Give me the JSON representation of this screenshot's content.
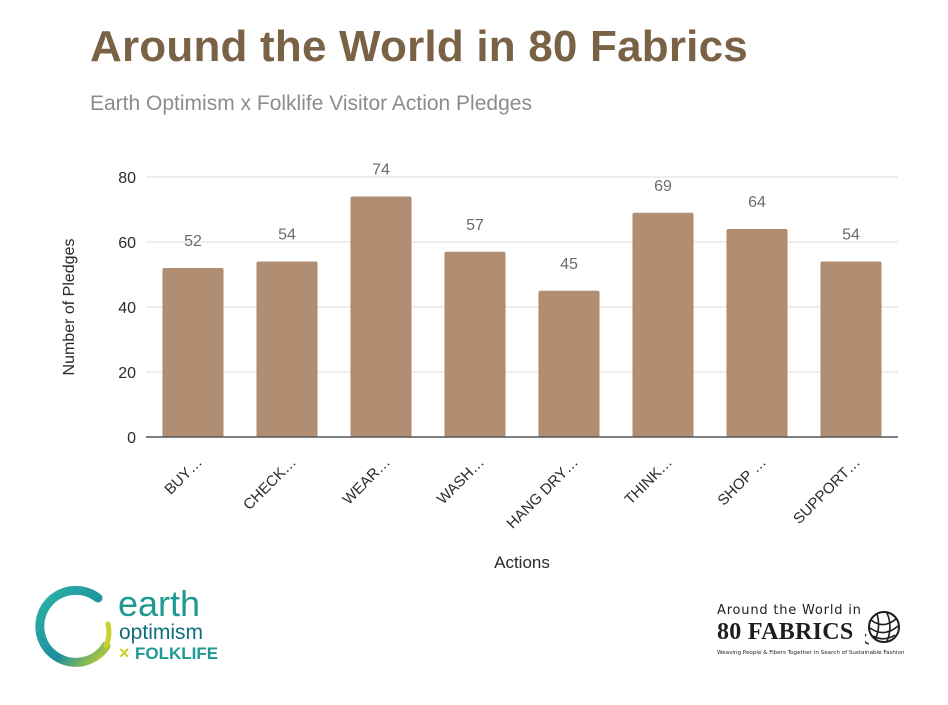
{
  "colors": {
    "title": "#7a6246",
    "subtitle": "#8c8c8c",
    "bar": "#b18e72",
    "grid": "#dedede",
    "axis_text": "#2b2b2b",
    "data_label": "#6b6b6b",
    "earth_green": "#1f9a92",
    "earth_dark": "#0f6f7a",
    "folklife_yellow": "#c9d22c",
    "logo_right_text": "#1e1e1e"
  },
  "header": {
    "title": "Around the World in 80 Fabrics",
    "subtitle": "Earth Optimism x Folklife Visitor Action Pledges"
  },
  "chart_data": {
    "type": "bar",
    "categories": [
      "BUY…",
      "CHECK…",
      "WEAR…",
      "WASH…",
      "HANG DRY…",
      "THINK…",
      "SHOP …",
      "SUPPORT…"
    ],
    "values": [
      52,
      54,
      74,
      57,
      45,
      69,
      64,
      54
    ],
    "xlabel": "Actions",
    "ylabel": "Number of Pledges",
    "ylim": [
      0,
      80
    ],
    "yticks": [
      0,
      20,
      40,
      60,
      80
    ],
    "grid": true,
    "data_labels": true
  },
  "logos": {
    "left": {
      "line1": "earth",
      "line2": "optimism",
      "line3_mark": "×",
      "line3": "FOLKLIFE"
    },
    "right": {
      "line1": "Around the World in",
      "line2": "80 FABRICS",
      "tagline": "Weaving People & Fibers Together in Search of Sustainable Fashion"
    }
  }
}
